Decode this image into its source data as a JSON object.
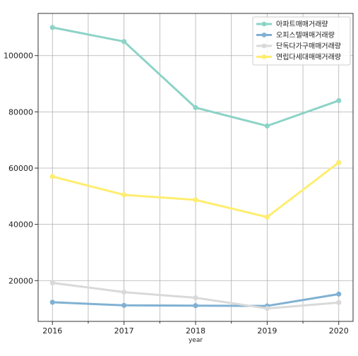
{
  "chart_data": {
    "type": "line",
    "title": "",
    "xlabel": "year",
    "ylabel": "",
    "x": [
      2016,
      2017,
      2018,
      2019,
      2020
    ],
    "xlim": [
      2015.8,
      2020.2
    ],
    "ylim": [
      5500,
      115000
    ],
    "xticks": [
      2016,
      2017,
      2018,
      2019,
      2020
    ],
    "xtick_labels": [
      "2016",
      "2017",
      "2018",
      "2019",
      "2020"
    ],
    "x_minor_ticks": [
      2016.5,
      2017.5,
      2018.5,
      2019.5
    ],
    "yticks": [
      20000,
      40000,
      60000,
      80000,
      100000
    ],
    "ytick_labels": [
      "20000",
      "40000",
      "60000",
      "80000",
      "100000"
    ],
    "grid": true,
    "legend_position": "top-right",
    "series": [
      {
        "name": "아파트매매거래량",
        "color": "#8dd3c7",
        "values": [
          110000,
          105000,
          81500,
          75000,
          84000
        ]
      },
      {
        "name": "오피스텔매매거래량",
        "color": "#80b1d3",
        "values": [
          12300,
          11200,
          11100,
          11000,
          15200
        ]
      },
      {
        "name": "단독다가구매매거래량",
        "color": "#d9d9d9",
        "values": [
          19200,
          15900,
          13900,
          10100,
          12200
        ]
      },
      {
        "name": "연립다세대매매거래량",
        "color": "#ffed6f",
        "values": [
          57000,
          50500,
          48700,
          42600,
          62000
        ]
      }
    ]
  }
}
